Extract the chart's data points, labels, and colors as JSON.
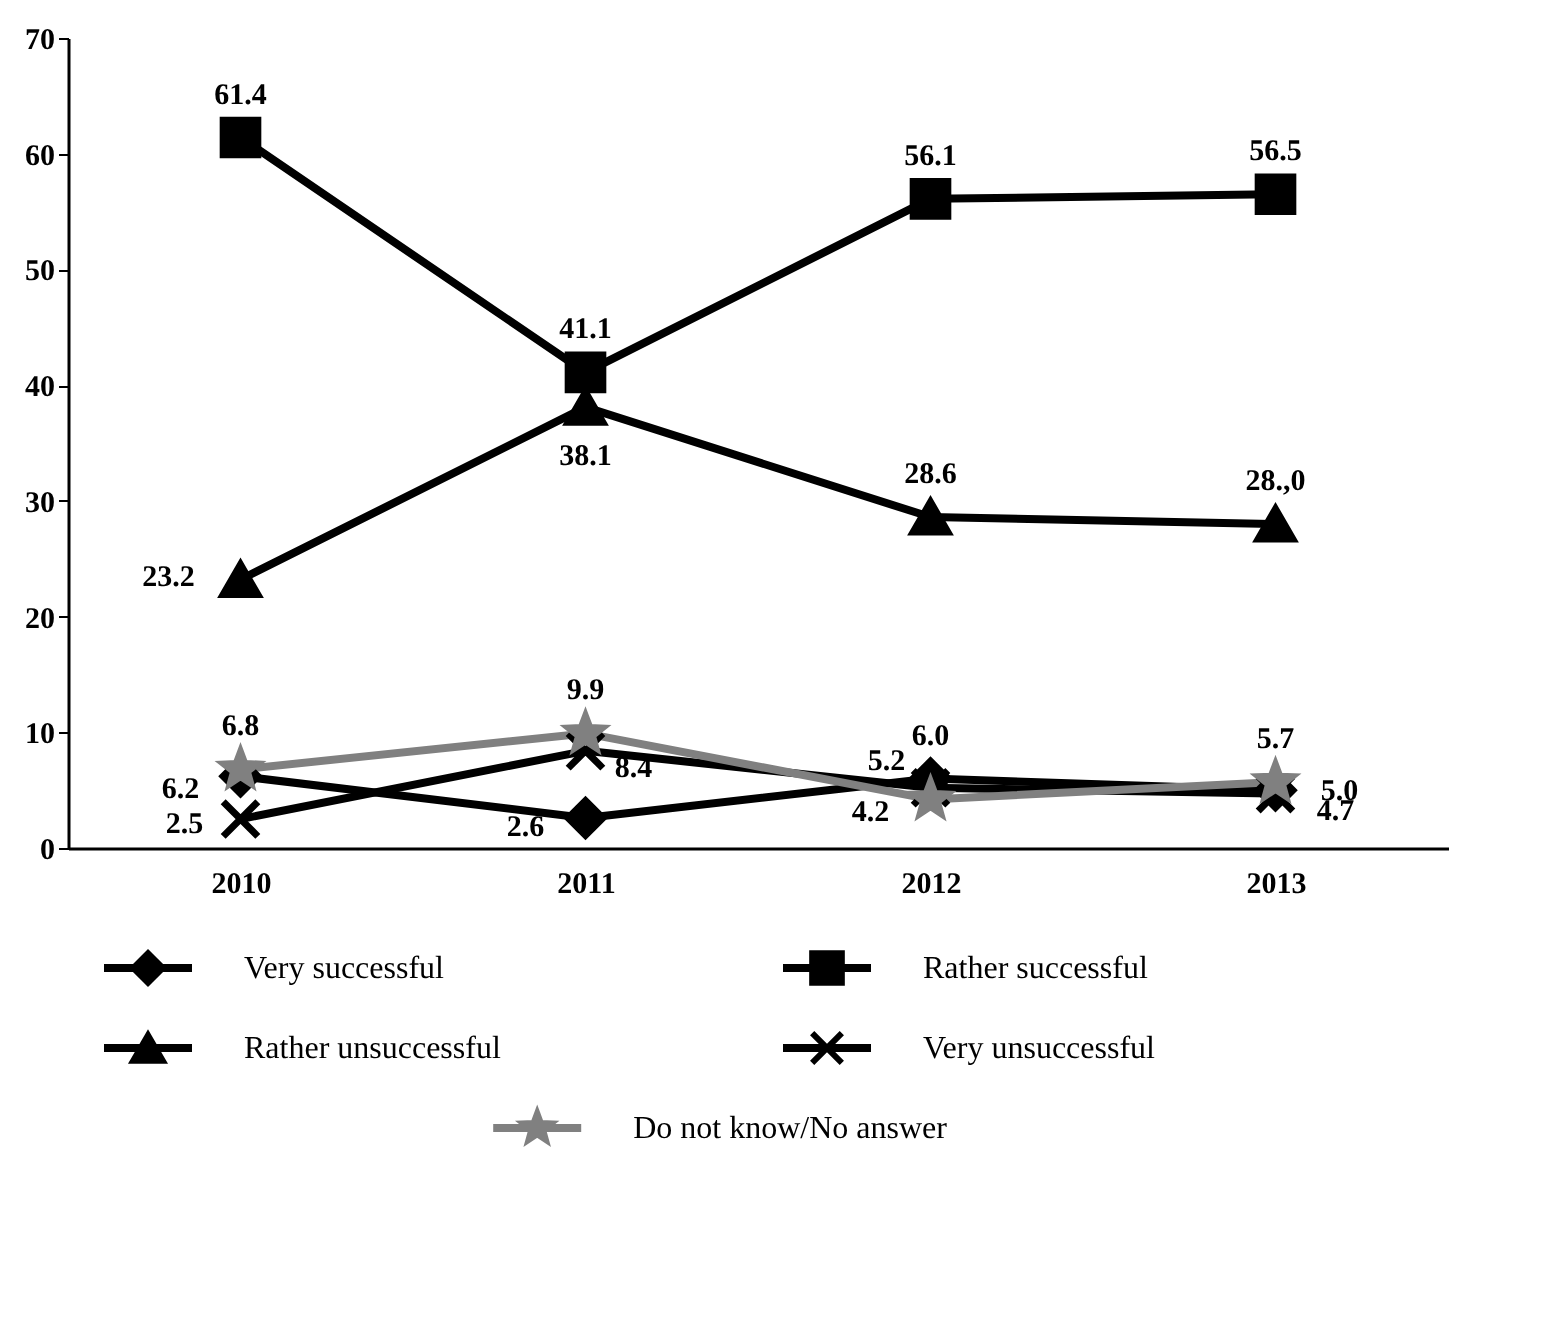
{
  "chart_data": {
    "type": "line",
    "categories": [
      "2010",
      "2011",
      "2012",
      "2013"
    ],
    "ylim": [
      0,
      70
    ],
    "yticks": [
      0,
      10,
      20,
      30,
      40,
      50,
      60,
      70
    ],
    "grid": false,
    "legend": "bottom",
    "line_style": "solid",
    "series": [
      {
        "name": "Very successful",
        "color": "#000000",
        "marker": "diamond",
        "values": [
          6.2,
          2.6,
          6.0,
          5.0
        ],
        "value_labels": [
          "6.2",
          "2.6",
          "6.0",
          "5.0"
        ]
      },
      {
        "name": "Rather successful",
        "color": "#000000",
        "marker": "square",
        "values": [
          61.4,
          41.1,
          56.1,
          56.5
        ],
        "value_labels": [
          "61.4",
          "41.1",
          "56.1",
          "56.5"
        ]
      },
      {
        "name": "Rather unsuccessful",
        "color": "#000000",
        "marker": "triangle",
        "values": [
          23.2,
          38.1,
          28.6,
          28.0
        ],
        "value_labels": [
          "23.2",
          "38.1",
          "28.6",
          "28.,0"
        ]
      },
      {
        "name": "Very unsuccessful",
        "color": "#000000",
        "marker": "cross",
        "values": [
          2.5,
          8.4,
          5.2,
          4.7
        ],
        "value_labels": [
          "2.5",
          "8.4",
          "5.2",
          "4.7"
        ]
      },
      {
        "name": "Do not know/No answer",
        "color": "#808080",
        "marker": "star",
        "values": [
          6.8,
          9.9,
          4.2,
          5.7
        ],
        "value_labels": [
          "6.8",
          "9.9",
          "4.2",
          "5.7"
        ]
      }
    ]
  }
}
